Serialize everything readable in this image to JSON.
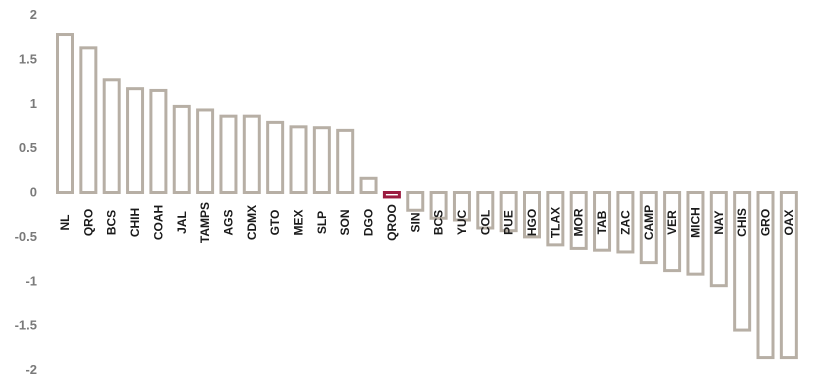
{
  "chart_data": {
    "type": "bar",
    "title": "",
    "xlabel": "",
    "ylabel": "",
    "ylim": [
      -2,
      2
    ],
    "yticks": [
      "2",
      "1.5",
      "1",
      "0.5",
      "0",
      "-0.5",
      "-1",
      "-1.5",
      "-2"
    ],
    "ytick_values": [
      2,
      1.5,
      1,
      0.5,
      0,
      -0.5,
      -1,
      -1.5,
      -2
    ],
    "grid": false,
    "legend": "none",
    "categories": [
      "NL",
      "QRO",
      "BCS",
      "CHIH",
      "COAH",
      "JAL",
      "TAMPS",
      "AGS",
      "CDMX",
      "GTO",
      "MEX",
      "SLP",
      "SON",
      "DGO",
      "QROO",
      "SIN",
      "BCS",
      "YUC",
      "COL",
      "PUE",
      "HGO",
      "TLAX",
      "MOR",
      "TAB",
      "ZAC",
      "CAMP",
      "VER",
      "MICH",
      "NAY",
      "CHIS",
      "GRO",
      "OAX"
    ],
    "values": [
      1.78,
      1.63,
      1.27,
      1.17,
      1.15,
      0.97,
      0.93,
      0.86,
      0.86,
      0.79,
      0.74,
      0.73,
      0.7,
      0.16,
      -0.05,
      -0.2,
      -0.29,
      -0.31,
      -0.4,
      -0.43,
      -0.5,
      -0.59,
      -0.63,
      -0.65,
      -0.67,
      -0.79,
      -0.88,
      -0.92,
      -1.05,
      -1.55,
      -1.86,
      -1.86
    ],
    "highlight_category": "QROO",
    "colors": {
      "bar_stroke": "#b7afa5",
      "highlight_stroke": "#9b1b3f",
      "bar_fill": "#ffffff",
      "tick_text": "#7a7a7a",
      "category_text": "#1a1a1a"
    }
  }
}
